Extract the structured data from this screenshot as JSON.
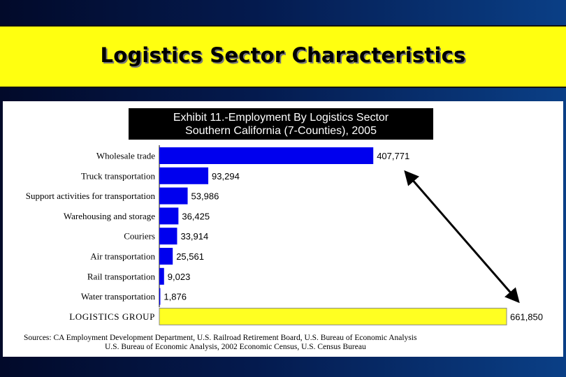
{
  "slide": {
    "title": "Logistics Sector Characteristics"
  },
  "exhibit": {
    "title_line1": "Exhibit 11.-Employment By Logistics Sector",
    "title_line2": "Southern California (7-Counties), 2005"
  },
  "sources": {
    "line1": "Sources: CA Employment Development Department, U.S. Railroad Retirement Board, U.S. Bureau of Economic Analysis",
    "line2": "U.S. Bureau of Economic Analysis, 2002 Economic Census, U.S. Census Bureau"
  },
  "colors": {
    "bar": "#0000ee",
    "total_bar": "#ffff22",
    "banner": "#ffff10"
  },
  "chart_data": {
    "type": "bar",
    "orientation": "horizontal",
    "categories": [
      "Wholesale trade",
      "Truck transportation",
      "Support activities for transportation",
      "Warehousing and storage",
      "Couriers",
      "Air transportation",
      "Rail transportation",
      "Water transportation",
      "LOGISTICS GROUP"
    ],
    "values": [
      407771,
      93294,
      53986,
      36425,
      33914,
      25561,
      9023,
      1876,
      661850
    ],
    "value_labels": [
      "407,771",
      "93,294",
      "53,986",
      "36,425",
      "33,914",
      "25,561",
      "9,023",
      "1,876",
      "661,850"
    ],
    "highlight_category": "LOGISTICS GROUP",
    "xlim": [
      0,
      661850
    ],
    "grid": false,
    "annotation": "double-headed arrow"
  }
}
